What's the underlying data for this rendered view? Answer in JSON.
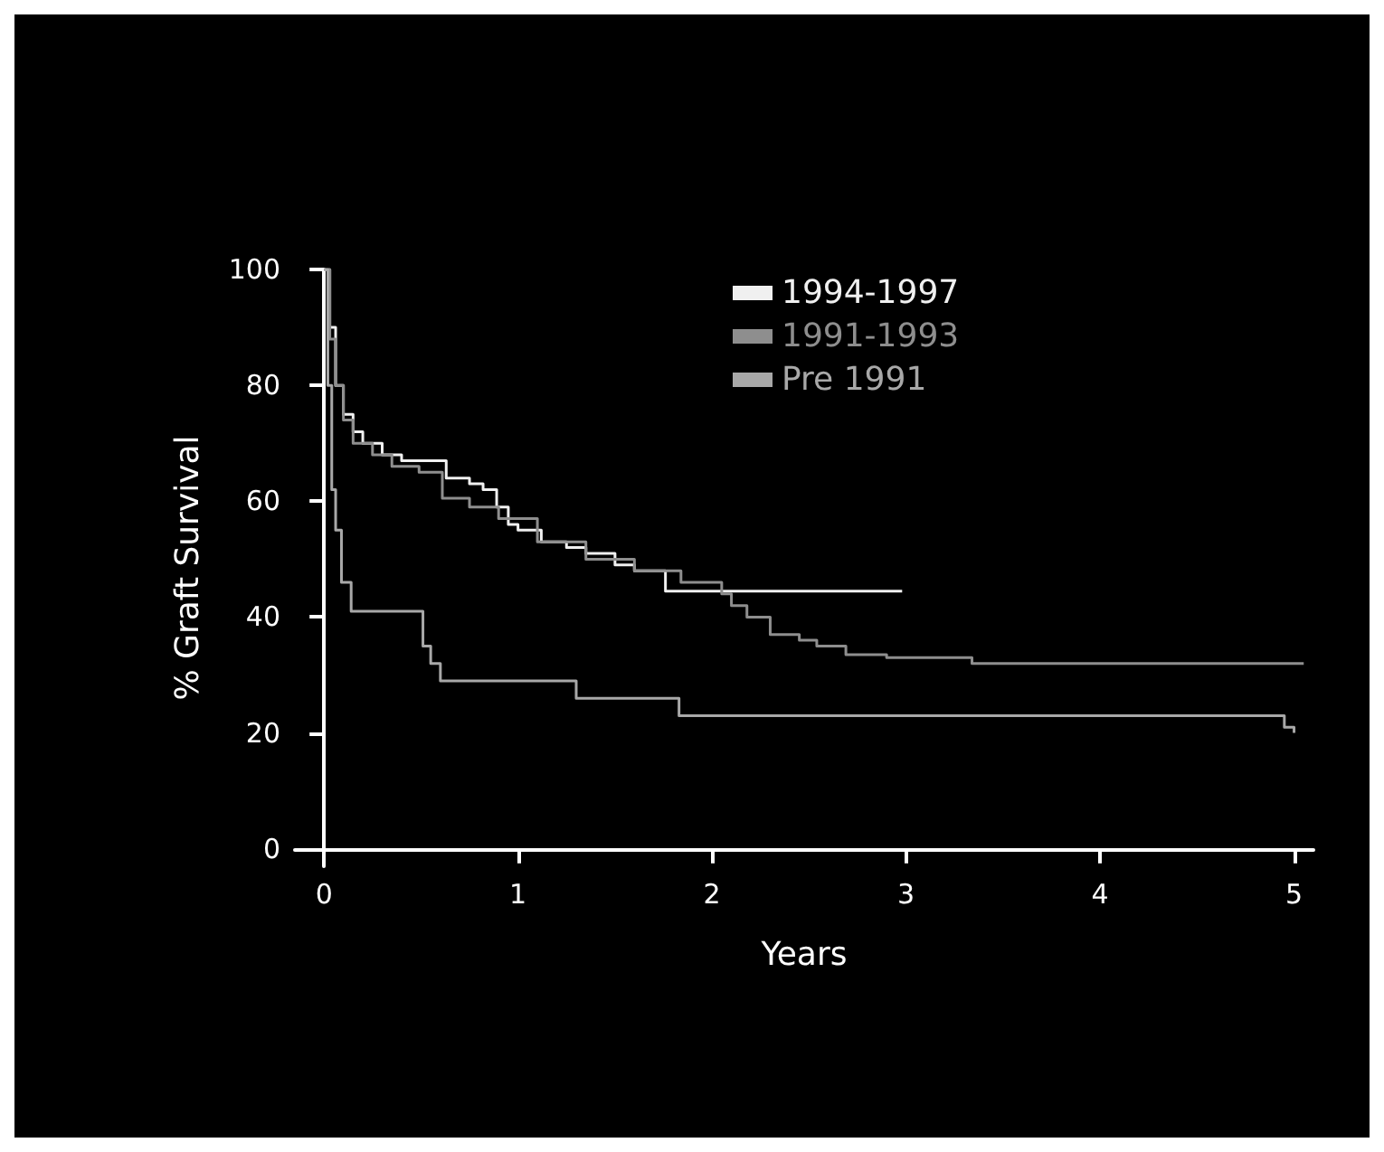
{
  "chart_data": {
    "type": "step",
    "xlabel": "Years",
    "ylabel": "% Graft Survival",
    "xlim": [
      -0.15,
      5.1
    ],
    "ylim": [
      -3,
      100
    ],
    "xticks": [
      0,
      1,
      2,
      3,
      4,
      5
    ],
    "yticks": [
      0,
      20,
      40,
      60,
      80,
      100
    ],
    "grid": false,
    "legend": "top right",
    "marker": "none",
    "line_style": "solid",
    "series": [
      {
        "name": "1994-1997",
        "color": "#f0f0f0",
        "x": [
          0,
          0.03,
          0.06,
          0.1,
          0.15,
          0.2,
          0.3,
          0.4,
          0.63,
          0.75,
          0.82,
          0.89,
          0.95,
          1.0,
          1.12,
          1.25,
          1.35,
          1.5,
          1.6,
          1.76,
          2.98
        ],
        "values": [
          100,
          90,
          80,
          75,
          72,
          70,
          68,
          67,
          64,
          63,
          62,
          59,
          56,
          55,
          53,
          52,
          51,
          49,
          48,
          44.5,
          44.5
        ]
      },
      {
        "name": "1991-1993",
        "color": "#8e8e8e",
        "x": [
          0,
          0.03,
          0.06,
          0.1,
          0.15,
          0.25,
          0.35,
          0.49,
          0.61,
          0.75,
          0.9,
          1.1,
          1.35,
          1.6,
          1.84,
          2.05,
          2.1,
          2.18,
          2.3,
          2.45,
          2.54,
          2.69,
          2.9,
          3.34,
          5.05
        ],
        "values": [
          100,
          88,
          80,
          74,
          70,
          68,
          66,
          65,
          60.5,
          59,
          57,
          53,
          50,
          48,
          46,
          44,
          42,
          40,
          37,
          36,
          35,
          33.5,
          33,
          32,
          32
        ]
      },
      {
        "name": "Pre 1991",
        "color": "#a8a8a8",
        "x": [
          0,
          0.02,
          0.04,
          0.06,
          0.09,
          0.14,
          0.51,
          0.55,
          0.6,
          1.3,
          1.83,
          4.95,
          5.0
        ],
        "values": [
          100,
          80,
          62,
          55,
          46,
          41,
          35,
          32,
          29,
          26,
          23,
          21,
          20
        ]
      }
    ]
  }
}
